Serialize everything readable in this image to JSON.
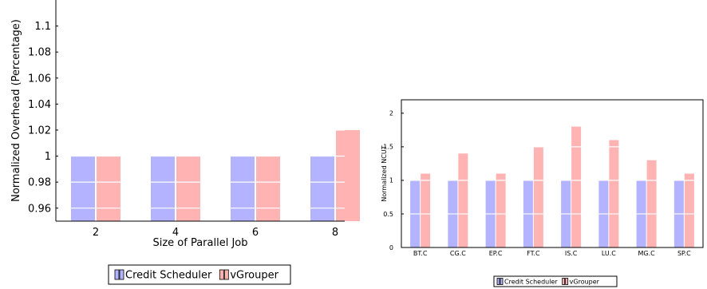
{
  "chart_data": [
    {
      "type": "bar",
      "xlabel": "Size of Parallel Job",
      "ylabel": "Normalized Overhead (Percentage)",
      "categories": [
        "2",
        "4",
        "6",
        "8"
      ],
      "ylim": [
        0.95,
        1.12
      ],
      "yticks": [
        0.96,
        0.98,
        1,
        1.02,
        1.04,
        1.06,
        1.08,
        1.1
      ],
      "ytick_labels": [
        "0.96",
        "0.98",
        "1",
        "1.02",
        "1.04",
        "1.06",
        "1.08",
        "1.1"
      ],
      "grid": true,
      "legend_position": "bottom",
      "series": [
        {
          "name": "Credit Scheduler",
          "color": "#b3b3ff",
          "values": [
            1,
            1,
            1,
            1
          ]
        },
        {
          "name": "vGrouper",
          "color": "#ffb3b3",
          "values": [
            1,
            1,
            1,
            1.02
          ]
        }
      ]
    },
    {
      "type": "bar",
      "xlabel": "",
      "ylabel": "Normalized NCUT",
      "categories": [
        "BT.C",
        "CG.C",
        "EP.C",
        "FT.C",
        "IS.C",
        "LU.C",
        "MG.C",
        "SP.C"
      ],
      "ylim": [
        0,
        2.2
      ],
      "yticks": [
        0,
        0.5,
        1,
        1.5,
        2
      ],
      "ytick_labels": [
        "0",
        "0.5",
        "1",
        "1.5",
        "2"
      ],
      "grid": true,
      "legend_position": "bottom",
      "series": [
        {
          "name": "Credit Scheduler",
          "color": "#b3b3ff",
          "values": [
            1,
            1,
            1,
            1,
            1,
            1,
            1,
            1
          ]
        },
        {
          "name": "vGrouper",
          "color": "#ffb3b3",
          "values": [
            1.1,
            1.4,
            1.1,
            1.5,
            1.8,
            1.6,
            1.3,
            1.1
          ]
        }
      ]
    }
  ]
}
